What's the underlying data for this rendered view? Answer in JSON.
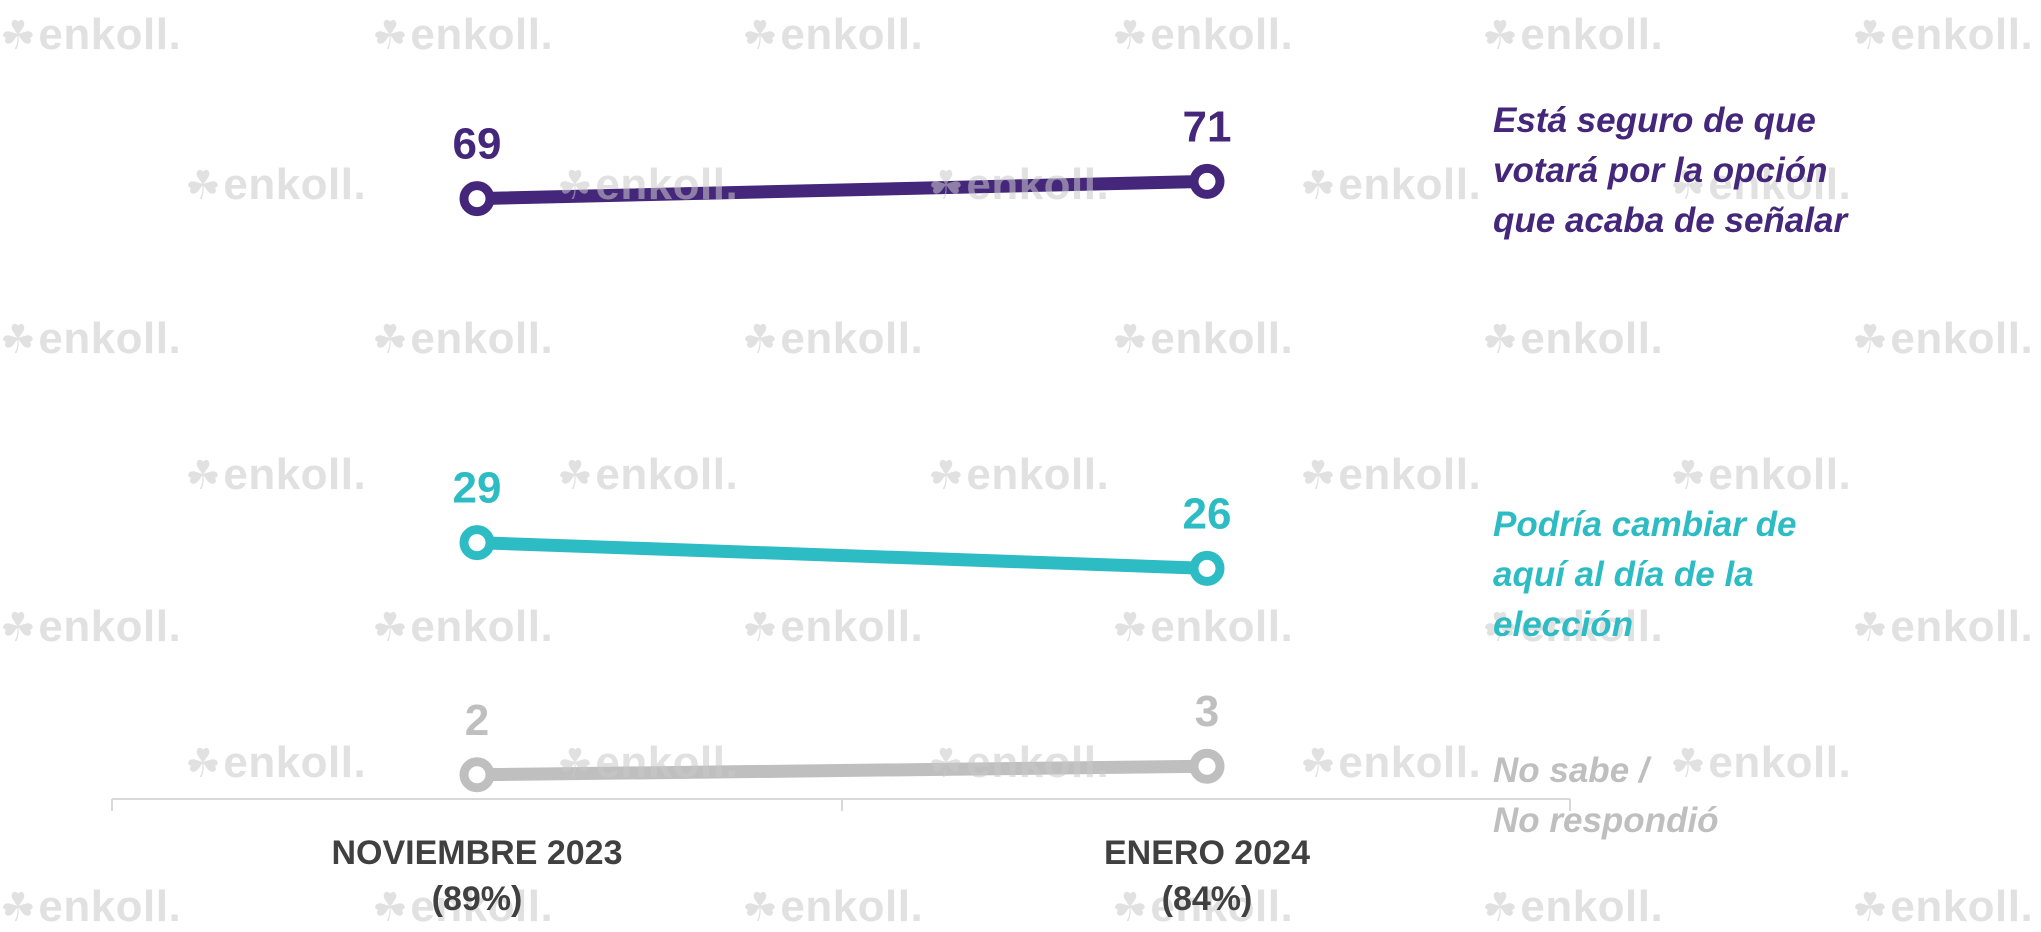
{
  "chart_data": {
    "type": "line",
    "categories": [
      "NOVIEMBRE 2023",
      "ENERO 2024"
    ],
    "category_bases": [
      "(89%)",
      "(84%)"
    ],
    "series": [
      {
        "name_lines": [
          "Está seguro de que",
          "votará por la opción",
          "que acaba de señalar"
        ],
        "values": [
          69,
          71
        ],
        "labels": [
          "69",
          "71"
        ],
        "color": "#44267a"
      },
      {
        "name_lines": [
          "Podría cambiar de",
          "aquí al día de la",
          "elección"
        ],
        "values": [
          29,
          26
        ],
        "labels": [
          "29",
          "26"
        ],
        "color": "#2ebcc4"
      },
      {
        "name_lines": [
          "No sabe /",
          "No respondió"
        ],
        "values": [
          2,
          3
        ],
        "labels": [
          "2",
          "3"
        ],
        "color": "#bfbfbf"
      }
    ],
    "axis_line_color": "#d9d9d9"
  },
  "watermark": {
    "text": "enkoll.",
    "color": "#c9c9c9"
  }
}
